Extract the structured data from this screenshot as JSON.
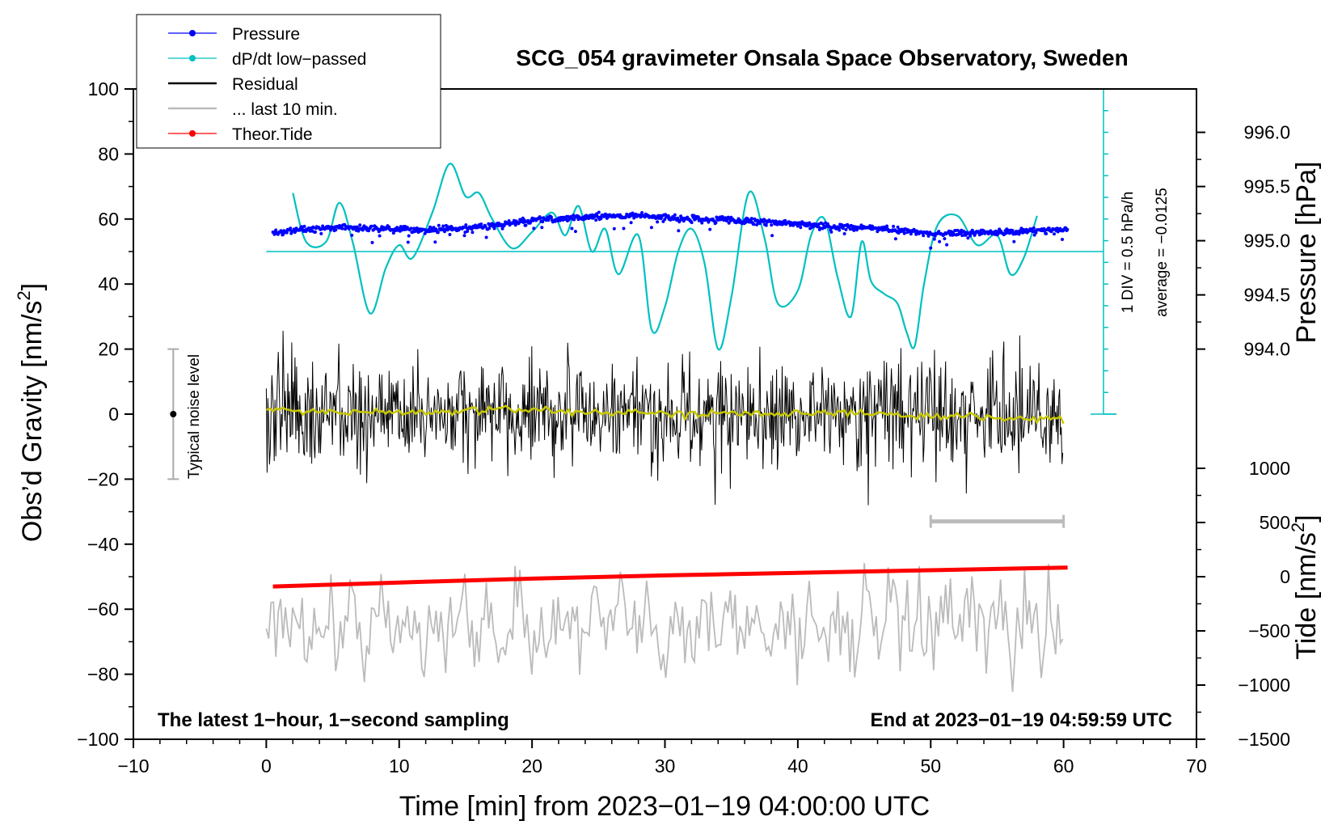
{
  "chart_data": {
    "type": "line",
    "title": "SCG_054 gravimeter Onsala Space Observatory, Sweden",
    "xlabel": "Time [min] from 2023−01−19 04:00:00 UTC",
    "ylabel": "Obs’d Gravity [nm/s²]",
    "ylabel_parts": {
      "base": "Obs’d Gravity [nm/s",
      "sup": "2",
      "end": "]"
    },
    "y2label": "Pressure [hPa]",
    "y3label_parts": {
      "base": "Tide [nm/s",
      "sup": "2",
      "end": "]"
    },
    "xlim": [
      -10,
      70
    ],
    "ylim": [
      -100,
      100
    ],
    "xticks": [
      -10,
      0,
      10,
      20,
      30,
      40,
      50,
      60,
      70
    ],
    "xtick_labels": [
      "−10",
      "0",
      "10",
      "20",
      "30",
      "40",
      "50",
      "60",
      "70"
    ],
    "yticks": [
      -100,
      -80,
      -60,
      -40,
      -20,
      0,
      20,
      40,
      60,
      80,
      100
    ],
    "ytick_labels": [
      "−100",
      "−80",
      "−60",
      "−40",
      "−20",
      "0",
      "20",
      "40",
      "60",
      "80",
      "100"
    ],
    "pressure_axis": {
      "ticks": [
        994.0,
        994.5,
        995.0,
        995.5,
        996.0
      ],
      "labels": [
        "994.0",
        "994.5",
        "995.0",
        "995.5",
        "996.0"
      ],
      "gravity_equiv": [
        20,
        36.667,
        53.333,
        70,
        86.667
      ]
    },
    "tide_axis": {
      "ticks": [
        -1500,
        -1000,
        -500,
        0,
        500,
        1000
      ],
      "labels": [
        "−1500",
        "−1000",
        "−500",
        "0",
        "500",
        "1000"
      ],
      "gravity_equiv": [
        -100,
        -83.333,
        -66.667,
        -50,
        -33.333,
        -16.667
      ]
    },
    "legend": [
      {
        "label": "Pressure",
        "color": "#0000ff",
        "style": "line-dot"
      },
      {
        "label": "dP/dt low−passed",
        "color": "#00c0c0",
        "style": "line-dot"
      },
      {
        "label": "Residual",
        "color": "#000000",
        "style": "line"
      },
      {
        "label": "... last 10 min.",
        "color": "#bbbbbb",
        "style": "line"
      },
      {
        "label": "Theor.Tide",
        "color": "#ff0000",
        "style": "line-dot"
      }
    ],
    "legend_position": "top-left",
    "footer_left": "The latest 1−hour, 1−second sampling",
    "footer_right": "End at 2023−01−19 04:59:59 UTC",
    "noise_label": "Typical noise level",
    "noise_range": [
      -20,
      20
    ],
    "noise_x": -7,
    "dpdt_scale_label": "1 DIV = 0.5 hPa/h",
    "dpdt_average_label": "average = −0.0125",
    "dpdt_baseline": 50,
    "dpdt_scale_x": 63,
    "dpdt_scale_range": [
      0,
      100
    ],
    "last10_bar": [
      50,
      60
    ],
    "last10_bar_y": -33,
    "series": [
      {
        "name": "Pressure",
        "color": "#0000ff",
        "x": [
          0.5,
          2,
          4,
          6,
          8,
          10,
          12,
          14,
          16,
          18,
          20,
          22,
          24,
          26,
          28,
          30,
          32,
          34,
          36,
          38,
          40,
          42,
          44,
          46,
          48,
          50,
          52,
          54,
          56,
          58,
          60.3
        ],
        "values": [
          55.5,
          56.5,
          57,
          57.5,
          57,
          57,
          56.5,
          57,
          57.5,
          58.5,
          59.5,
          60,
          60.5,
          61,
          61,
          60.5,
          60,
          60,
          59.5,
          59,
          58.5,
          58,
          57.5,
          57,
          56.5,
          55.5,
          55.5,
          55.8,
          56,
          56.5,
          56.8
        ]
      },
      {
        "name": "dP/dt low−passed",
        "color": "#00c0c0",
        "x": [
          2,
          3,
          4.5,
          5.5,
          6.5,
          7.8,
          9,
          10,
          11,
          12.5,
          13.8,
          15,
          16,
          17,
          18.5,
          20,
          21.5,
          22.5,
          23.5,
          24.5,
          25.5,
          26.5,
          28,
          29,
          30,
          31,
          32,
          33,
          34,
          35,
          36.3,
          37.5,
          38.5,
          40,
          41,
          42,
          43,
          44,
          44.8,
          45.5,
          46.5,
          47.5,
          48.2,
          48.8,
          49.5,
          50.5,
          52,
          53.5,
          55,
          56,
          57,
          58
        ],
        "values": [
          68,
          53,
          53,
          65,
          53,
          31,
          45,
          52,
          48,
          62,
          77,
          67,
          68,
          60,
          51,
          56,
          62,
          55,
          64,
          50,
          57,
          43,
          55,
          26,
          33,
          50,
          57,
          46,
          20,
          36,
          68,
          54,
          34,
          38,
          55,
          60,
          42,
          30,
          53,
          41,
          37,
          34,
          25,
          21,
          40,
          58,
          61,
          52,
          55,
          43,
          48,
          61
        ]
      },
      {
        "name": "Residual",
        "color": "#000000",
        "x": [
          0,
          60
        ],
        "values": [
          0,
          0
        ],
        "envelope": 16
      },
      {
        "name": "Residual (smoothed)",
        "color": "#c8c800",
        "x": [
          0,
          5,
          10,
          15,
          20,
          25,
          30,
          35,
          40,
          45,
          50,
          55,
          60
        ],
        "values": [
          1.5,
          0.5,
          0.5,
          1,
          1.5,
          0.5,
          0,
          0.5,
          0.5,
          0,
          -0.5,
          -1,
          -1.5
        ]
      },
      {
        "name": "... last 10 min.",
        "color": "#bbbbbb",
        "x": [
          0,
          60
        ],
        "values": [
          -65,
          -65
        ],
        "envelope": 12
      },
      {
        "name": "Theor.Tide",
        "color": "#ff0000",
        "x": [
          0.5,
          10,
          20,
          30,
          40,
          50,
          60.3
        ],
        "values": [
          -53,
          -51.8,
          -50.6,
          -49.6,
          -48.8,
          -48,
          -47.2
        ]
      }
    ]
  }
}
